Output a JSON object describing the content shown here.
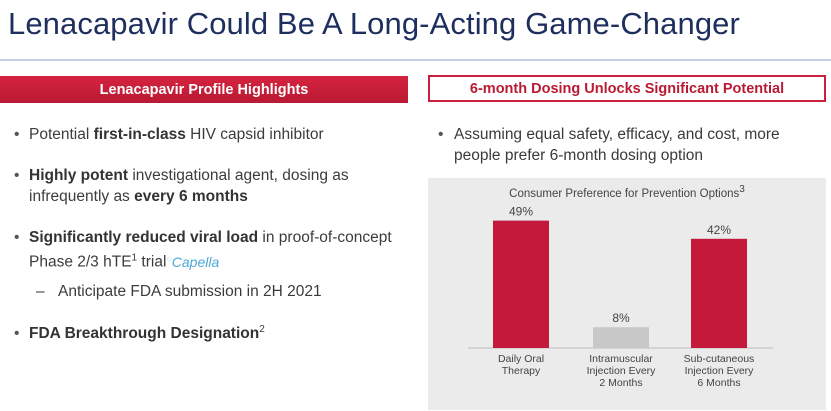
{
  "slide": {
    "title": "Lenacapavir Could Be A Long-Acting Game-Changer"
  },
  "left": {
    "header": "Lenacapavir Profile Highlights",
    "bullets": [
      {
        "pre": "Potential ",
        "bold": "first-in-class",
        "post": " HIV capsid inhibitor"
      },
      {
        "bold1": "Highly potent",
        "mid": " investigational agent, dosing as infrequently as ",
        "bold2": "every 6 months"
      },
      {
        "bold": "Significantly reduced viral load",
        "mid": " in proof-of-concept Phase 2/3 hTE",
        "sup": "1",
        "post": " trial",
        "brand": "Capella"
      },
      {
        "sub": "Anticipate FDA submission in 2H 2021"
      },
      {
        "bold": "FDA Breakthrough Designation",
        "sup": "2"
      }
    ]
  },
  "right": {
    "header": "6-month Dosing Unlocks Significant Potential",
    "bullet": "Assuming equal safety, efficacy, and cost, more people prefer 6-month dosing option"
  },
  "chart_data": {
    "type": "bar",
    "title": "Consumer Preference for Prevention Options",
    "title_sup": "3",
    "categories": [
      [
        "Daily Oral",
        "Therapy"
      ],
      [
        "Intramuscular",
        "Injection Every",
        "2 Months"
      ],
      [
        "Sub-cutaneous",
        "Injection Every",
        "6 Months"
      ]
    ],
    "values": [
      49,
      8,
      42
    ],
    "labels": [
      "49%",
      "8%",
      "42%"
    ],
    "colors": [
      "#c4193a",
      "#c8c8c8",
      "#c4193a"
    ],
    "ylim": [
      0,
      60
    ]
  }
}
